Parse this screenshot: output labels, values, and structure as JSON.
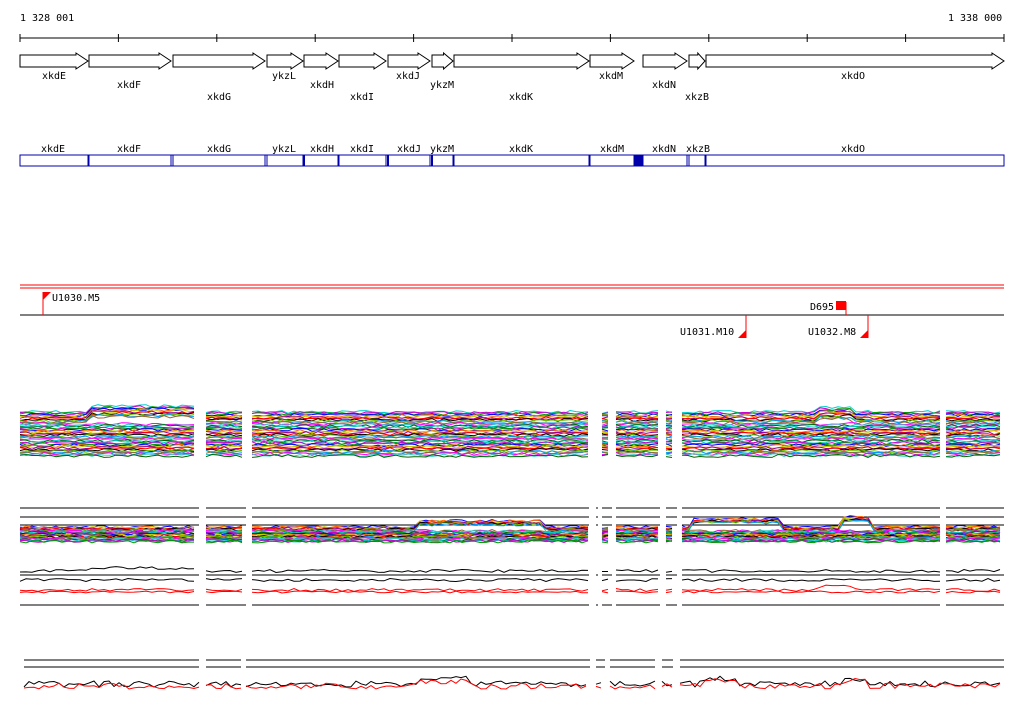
{
  "ruler": {
    "start_label": "1 328 001",
    "end_label": "1 338 000"
  },
  "genes_top": [
    {
      "name": "xkdE"
    },
    {
      "name": "xkdF"
    },
    {
      "name": "xkdG"
    },
    {
      "name": "ykzL"
    },
    {
      "name": "xkdH"
    },
    {
      "name": "xkdI"
    },
    {
      "name": "xkdJ"
    },
    {
      "name": "ykzM"
    },
    {
      "name": "xkdK"
    },
    {
      "name": "xkdM"
    },
    {
      "name": "xkdN"
    },
    {
      "name": "xkzB"
    },
    {
      "name": "xkdO"
    }
  ],
  "genes_blue": [
    {
      "name": "xkdE"
    },
    {
      "name": "xkdF"
    },
    {
      "name": "xkdG"
    },
    {
      "name": "ykzL"
    },
    {
      "name": "xkdH"
    },
    {
      "name": "xkdI"
    },
    {
      "name": "xkdJ"
    },
    {
      "name": "ykzM"
    },
    {
      "name": "xkdK"
    },
    {
      "name": "xkdM"
    },
    {
      "name": "xkdN"
    },
    {
      "name": "xkzB"
    },
    {
      "name": "xkdO"
    }
  ],
  "markers": [
    {
      "label": "U1030.M5"
    },
    {
      "label": "D695"
    },
    {
      "label": "U1031.M10"
    },
    {
      "label": "U1032.M8"
    }
  ],
  "colors": {
    "gene_outline": "#000000",
    "blue_track": "#0000aa",
    "marker_red": "#ff0000",
    "trace_red": "#ff0000",
    "trace_black": "#000000"
  }
}
